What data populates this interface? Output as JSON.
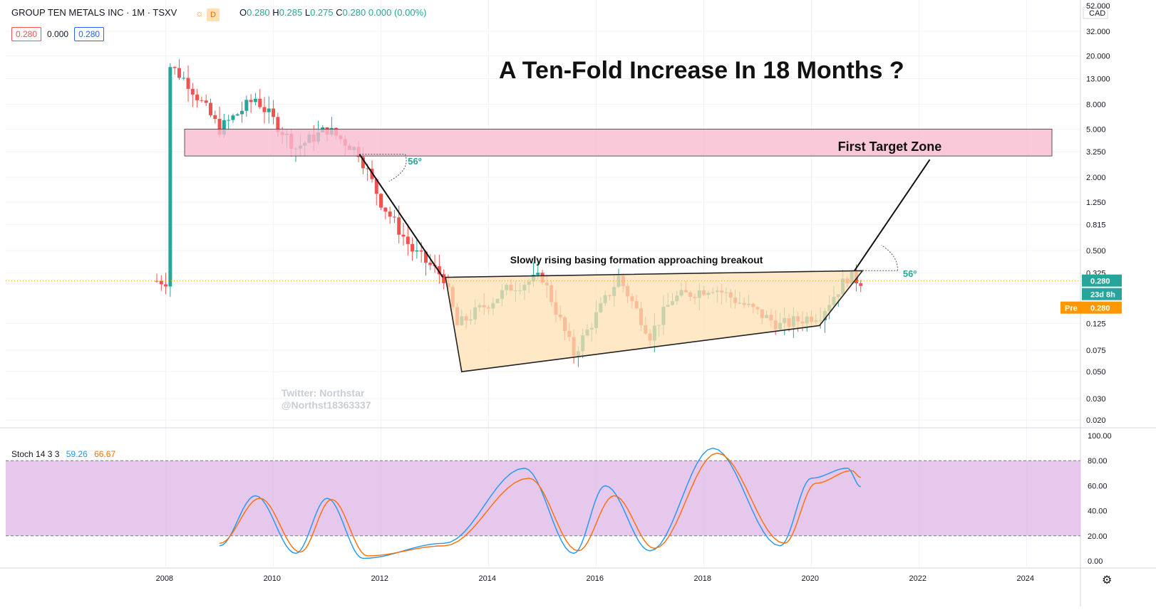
{
  "header": {
    "symbol": "GROUP TEN METALS INC · 1M · TSXV",
    "resolution_badge": "D",
    "open_label": "O",
    "open": "0.280",
    "high_label": "H",
    "high": "0.285",
    "low_label": "L",
    "low": "0.275",
    "close_label": "C",
    "close": "0.280",
    "change": "0.000 (0.00%)",
    "bid": "0.280",
    "spread": "0.000",
    "ask": "0.280"
  },
  "stoch_legend": {
    "name": "Stoch 14 3 3",
    "k": "59.26",
    "d": "66.67"
  },
  "annotations": {
    "title": "A Ten-Fold Increase In 18 Months ?",
    "target": "First Target Zone",
    "basing": "Slowly rising basing formation approaching breakout",
    "angle1": "56º",
    "angle2": "56º",
    "watermark1": "Twitter: Northstar",
    "watermark2": "@Northst18363337"
  },
  "price_axis": {
    "currency": "CAD",
    "ticks": [
      "52.000",
      "32.000",
      "20.000",
      "13.000",
      "8.000",
      "5.000",
      "3.250",
      "2.000",
      "1.250",
      "0.815",
      "0.500",
      "0.325",
      "0.125",
      "0.075",
      "0.050",
      "0.030",
      "0.020"
    ],
    "last_price": "0.280",
    "countdown": "23d 8h",
    "pre_label": "Pre",
    "pre_price": "0.280"
  },
  "stoch_axis": {
    "ticks": [
      "100.00",
      "80.00",
      "60.00",
      "40.00",
      "20.00",
      "0.00"
    ]
  },
  "time_axis": {
    "ticks": [
      "2008",
      "2010",
      "2012",
      "2014",
      "2016",
      "2018",
      "2020",
      "2022",
      "2024"
    ]
  },
  "colors": {
    "up": "#26a69a",
    "down": "#ef5350",
    "zone": "#f8bbd0",
    "basing": "#ffe0b2",
    "stoch_bg": "#e1bee7",
    "k_line": "#2196f3",
    "d_line": "#ff6d00"
  },
  "chart_data": [
    {
      "type": "candlestick",
      "scale": "log",
      "ylim": [
        0.02,
        52
      ],
      "x_start": "2007-11",
      "x_end": "2020-12",
      "key_points": [
        {
          "date": "2008-01",
          "close": 18
        },
        {
          "date": "2008-06",
          "close": 12
        },
        {
          "date": "2009-01",
          "close": 5
        },
        {
          "date": "2009-09",
          "close": 9
        },
        {
          "date": "2010-06",
          "close": 3.5
        },
        {
          "date": "2011-01",
          "close": 5
        },
        {
          "date": "2011-08",
          "close": 3.25
        },
        {
          "date": "2012-01",
          "close": 1.25
        },
        {
          "date": "2012-08",
          "close": 0.5
        },
        {
          "date": "2013-03",
          "close": 0.3
        },
        {
          "date": "2013-06",
          "close": 0.12
        },
        {
          "date": "2014-06",
          "close": 0.25
        },
        {
          "date": "2015-01",
          "close": 0.3
        },
        {
          "date": "2015-08",
          "close": 0.07
        },
        {
          "date": "2016-06",
          "close": 0.3
        },
        {
          "date": "2017-01",
          "close": 0.1
        },
        {
          "date": "2017-06",
          "close": 0.2
        },
        {
          "date": "2018-03",
          "close": 0.25
        },
        {
          "date": "2019-06",
          "close": 0.12
        },
        {
          "date": "2020-03",
          "close": 0.15
        },
        {
          "date": "2020-09",
          "close": 0.3
        },
        {
          "date": "2020-12",
          "close": 0.28
        }
      ]
    },
    {
      "type": "line",
      "name": "Stoch 14 3 3",
      "ylim": [
        0,
        100
      ],
      "bands": [
        20,
        80
      ],
      "key_points_k": [
        {
          "date": "2009-01",
          "value": 12
        },
        {
          "date": "2009-09",
          "value": 52
        },
        {
          "date": "2010-06",
          "value": 6
        },
        {
          "date": "2011-01",
          "value": 50
        },
        {
          "date": "2011-09",
          "value": 2
        },
        {
          "date": "2013-03",
          "value": 14
        },
        {
          "date": "2014-09",
          "value": 74
        },
        {
          "date": "2015-08",
          "value": 6
        },
        {
          "date": "2016-03",
          "value": 60
        },
        {
          "date": "2017-01",
          "value": 8
        },
        {
          "date": "2018-03",
          "value": 90
        },
        {
          "date": "2019-06",
          "value": 12
        },
        {
          "date": "2020-01",
          "value": 66
        },
        {
          "date": "2020-09",
          "value": 74
        },
        {
          "date": "2020-12",
          "value": 59.26
        }
      ],
      "key_points_d": [
        {
          "date": "2009-01",
          "value": 14
        },
        {
          "date": "2009-10",
          "value": 50
        },
        {
          "date": "2010-07",
          "value": 7
        },
        {
          "date": "2011-02",
          "value": 49
        },
        {
          "date": "2011-10",
          "value": 4
        },
        {
          "date": "2013-03",
          "value": 12
        },
        {
          "date": "2014-10",
          "value": 66
        },
        {
          "date": "2015-09",
          "value": 8
        },
        {
          "date": "2016-05",
          "value": 52
        },
        {
          "date": "2017-02",
          "value": 10
        },
        {
          "date": "2018-04",
          "value": 86
        },
        {
          "date": "2019-07",
          "value": 14
        },
        {
          "date": "2020-02",
          "value": 62
        },
        {
          "date": "2020-10",
          "value": 72
        },
        {
          "date": "2020-12",
          "value": 66.67
        }
      ]
    }
  ]
}
